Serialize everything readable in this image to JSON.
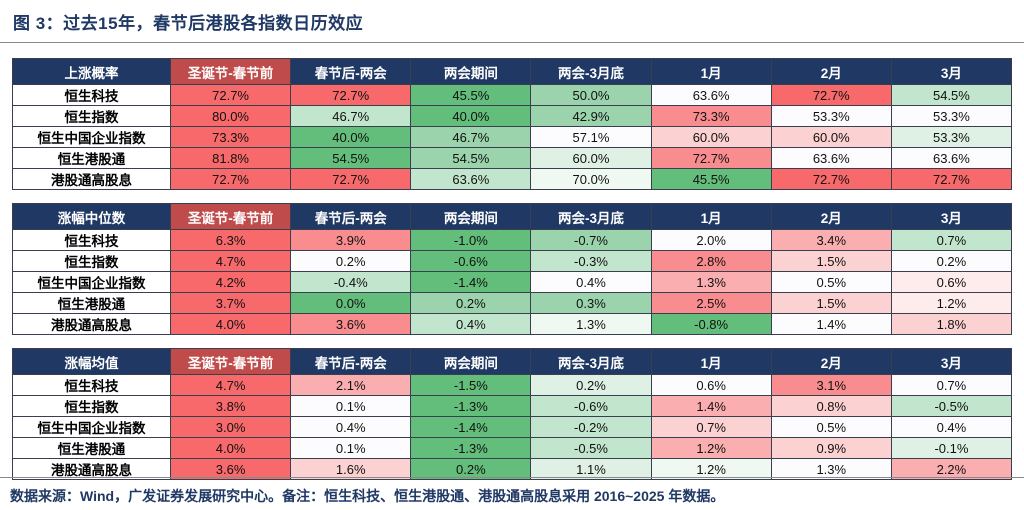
{
  "title": "图 3：过去15年，春节后港股各指数日历效应",
  "footer": "数据来源：Wind，广发证券发展研究中心。备注：恒生科技、恒生港股通、港股通高股息采用 2016~2025 年数据。",
  "colors": {
    "navy_header": "#1F3864",
    "red_header": "#BF4B4B",
    "border": "#3A3F4F",
    "palette": {
      "R4": "#F8696B",
      "R3": "#F98C8E",
      "R2": "#FBAEB0",
      "R1": "#FCD1D2",
      "R0": "#FEECEC",
      "W": "#FCFCFF",
      "G0": "#F0F8F2",
      "G1": "#DFF1E5",
      "G2": "#C2E5CD",
      "G3": "#9BD4AC",
      "G4": "#63BE7B"
    }
  },
  "chart_data": [
    {
      "type": "heatmap",
      "title": "上涨概率",
      "columns": [
        "圣诞节-春节前",
        "春节后-两会",
        "两会期间",
        "两会-3月底",
        "1月",
        "2月",
        "3月"
      ],
      "rows": [
        "恒生科技",
        "恒生指数",
        "恒生中国企业指数",
        "恒生港股通",
        "港股通高股息"
      ],
      "values": [
        [
          "72.7%",
          "72.7%",
          "45.5%",
          "50.0%",
          "63.6%",
          "72.7%",
          "54.5%"
        ],
        [
          "80.0%",
          "46.7%",
          "40.0%",
          "42.9%",
          "73.3%",
          "53.3%",
          "53.3%"
        ],
        [
          "73.3%",
          "40.0%",
          "46.7%",
          "57.1%",
          "60.0%",
          "60.0%",
          "53.3%"
        ],
        [
          "81.8%",
          "54.5%",
          "54.5%",
          "60.0%",
          "72.7%",
          "63.6%",
          "63.6%"
        ],
        [
          "72.7%",
          "72.7%",
          "63.6%",
          "70.0%",
          "45.5%",
          "72.7%",
          "72.7%"
        ]
      ],
      "cell_colors": [
        [
          "R4",
          "R4",
          "G4",
          "G3",
          "W",
          "R4",
          "G2"
        ],
        [
          "R4",
          "G2",
          "G4",
          "G3",
          "R3",
          "W",
          "W"
        ],
        [
          "R4",
          "G4",
          "G3",
          "W",
          "R1",
          "R1",
          "G1"
        ],
        [
          "R4",
          "G4",
          "G3",
          "G1",
          "R3",
          "W",
          "W"
        ],
        [
          "R4",
          "R4",
          "G2",
          "G0",
          "G4",
          "R4",
          "R4"
        ]
      ]
    },
    {
      "type": "heatmap",
      "title": "涨幅中位数",
      "columns": [
        "圣诞节-春节前",
        "春节后-两会",
        "两会期间",
        "两会-3月底",
        "1月",
        "2月",
        "3月"
      ],
      "rows": [
        "恒生科技",
        "恒生指数",
        "恒生中国企业指数",
        "恒生港股通",
        "港股通高股息"
      ],
      "values": [
        [
          "6.3%",
          "3.9%",
          "-1.0%",
          "-0.7%",
          "2.0%",
          "3.4%",
          "0.7%"
        ],
        [
          "4.7%",
          "0.2%",
          "-0.6%",
          "-0.3%",
          "2.8%",
          "1.5%",
          "0.2%"
        ],
        [
          "4.2%",
          "-0.4%",
          "-1.4%",
          "0.4%",
          "1.3%",
          "0.5%",
          "0.6%"
        ],
        [
          "3.7%",
          "0.0%",
          "0.2%",
          "0.3%",
          "2.5%",
          "1.5%",
          "1.2%"
        ],
        [
          "4.0%",
          "3.6%",
          "0.4%",
          "1.3%",
          "-0.8%",
          "1.4%",
          "1.8%"
        ]
      ],
      "cell_colors": [
        [
          "R4",
          "R3",
          "G4",
          "G3",
          "W",
          "R2",
          "G2"
        ],
        [
          "R4",
          "W",
          "G4",
          "G2",
          "R3",
          "R1",
          "W"
        ],
        [
          "R4",
          "G2",
          "G4",
          "W",
          "R2",
          "W",
          "R0"
        ],
        [
          "R4",
          "G4",
          "G3",
          "G3",
          "R3",
          "R1",
          "R0"
        ],
        [
          "R4",
          "R3",
          "G2",
          "G0",
          "G4",
          "W",
          "R1"
        ]
      ]
    },
    {
      "type": "heatmap",
      "title": "涨幅均值",
      "columns": [
        "圣诞节-春节前",
        "春节后-两会",
        "两会期间",
        "两会-3月底",
        "1月",
        "2月",
        "3月"
      ],
      "rows": [
        "恒生科技",
        "恒生指数",
        "恒生中国企业指数",
        "恒生港股通",
        "港股通高股息"
      ],
      "values": [
        [
          "4.7%",
          "2.1%",
          "-1.5%",
          "0.2%",
          "0.6%",
          "3.1%",
          "0.7%"
        ],
        [
          "3.8%",
          "0.1%",
          "-1.3%",
          "-0.6%",
          "1.4%",
          "0.8%",
          "-0.5%"
        ],
        [
          "3.0%",
          "0.4%",
          "-1.4%",
          "-0.2%",
          "0.7%",
          "0.5%",
          "0.4%"
        ],
        [
          "4.0%",
          "0.1%",
          "-1.3%",
          "-0.5%",
          "1.2%",
          "0.9%",
          "-0.1%"
        ],
        [
          "3.6%",
          "1.6%",
          "0.2%",
          "1.1%",
          "1.2%",
          "1.3%",
          "2.2%"
        ]
      ],
      "cell_colors": [
        [
          "R4",
          "R2",
          "G4",
          "G1",
          "W",
          "R3",
          "W"
        ],
        [
          "R4",
          "W",
          "G4",
          "G2",
          "R2",
          "R1",
          "G2"
        ],
        [
          "R4",
          "W",
          "G4",
          "G2",
          "R1",
          "W",
          "W"
        ],
        [
          "R4",
          "W",
          "G4",
          "G2",
          "R2",
          "R1",
          "G1"
        ],
        [
          "R4",
          "R1",
          "G4",
          "G1",
          "G0",
          "W",
          "R2"
        ]
      ]
    }
  ]
}
